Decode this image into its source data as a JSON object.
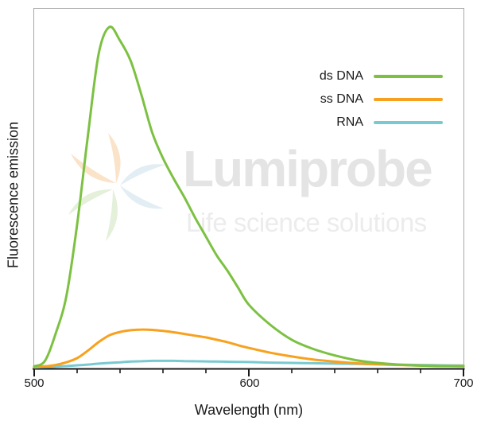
{
  "figure": {
    "background": "#ffffff",
    "frame_color": "#a8a8a8",
    "axis_color": "#1a1a1a"
  },
  "y_axis": {
    "label": "Fluorescence emission"
  },
  "x_axis": {
    "label": "Wavelength (nm)",
    "tick_labels": {
      "t500": "500",
      "t600": "600",
      "t700": "700"
    },
    "range": [
      500,
      700
    ],
    "minor_tick_step_nm": 20
  },
  "legend": {
    "items": [
      {
        "label": "ds DNA",
        "color": "#7cc142"
      },
      {
        "label": "ss DNA",
        "color": "#f8a11e"
      },
      {
        "label": "RNA",
        "color": "#79c9d1"
      }
    ]
  },
  "watermark": {
    "brand": "Lumiprobe",
    "tagline": "Life science solutions",
    "brand_color": "#e4e4e4",
    "tagline_color": "#ececec",
    "logo_colors": {
      "orange": "#fae3c8",
      "blue": "#e2eef4",
      "green": "#e4f0da"
    }
  },
  "chart_data": {
    "type": "line",
    "title": "",
    "xlabel": "Wavelength (nm)",
    "ylabel": "Fluorescence emission",
    "xlim": [
      500,
      700
    ],
    "ylim": [
      0,
      1.05
    ],
    "grid": false,
    "legend_position": "upper right inside",
    "x": [
      500,
      505,
      510,
      515,
      520,
      525,
      530,
      535,
      540,
      545,
      550,
      555,
      560,
      565,
      570,
      575,
      580,
      585,
      590,
      595,
      600,
      610,
      620,
      630,
      640,
      650,
      660,
      670,
      680,
      690,
      700
    ],
    "series": [
      {
        "name": "ds DNA",
        "color": "#7cc142",
        "values": [
          0.004,
          0.02,
          0.1,
          0.21,
          0.42,
          0.68,
          0.92,
          1.0,
          0.96,
          0.9,
          0.8,
          0.69,
          0.615,
          0.555,
          0.5,
          0.44,
          0.385,
          0.33,
          0.285,
          0.235,
          0.185,
          0.126,
          0.082,
          0.055,
          0.036,
          0.022,
          0.014,
          0.009,
          0.006,
          0.005,
          0.004
        ]
      },
      {
        "name": "ss DNA",
        "color": "#f8a11e",
        "values": [
          0.002,
          0.004,
          0.008,
          0.016,
          0.028,
          0.05,
          0.075,
          0.095,
          0.105,
          0.11,
          0.112,
          0.111,
          0.108,
          0.104,
          0.099,
          0.094,
          0.089,
          0.082,
          0.075,
          0.066,
          0.058,
          0.044,
          0.033,
          0.024,
          0.018,
          0.013,
          0.01,
          0.008,
          0.006,
          0.005,
          0.005
        ]
      },
      {
        "name": "RNA",
        "color": "#79c9d1",
        "values": [
          0.001,
          0.002,
          0.003,
          0.005,
          0.007,
          0.009,
          0.012,
          0.014,
          0.016,
          0.018,
          0.019,
          0.02,
          0.02,
          0.02,
          0.0195,
          0.019,
          0.0185,
          0.018,
          0.0175,
          0.017,
          0.0165,
          0.015,
          0.014,
          0.013,
          0.012,
          0.011,
          0.01,
          0.009,
          0.008,
          0.007,
          0.0065
        ]
      }
    ]
  }
}
